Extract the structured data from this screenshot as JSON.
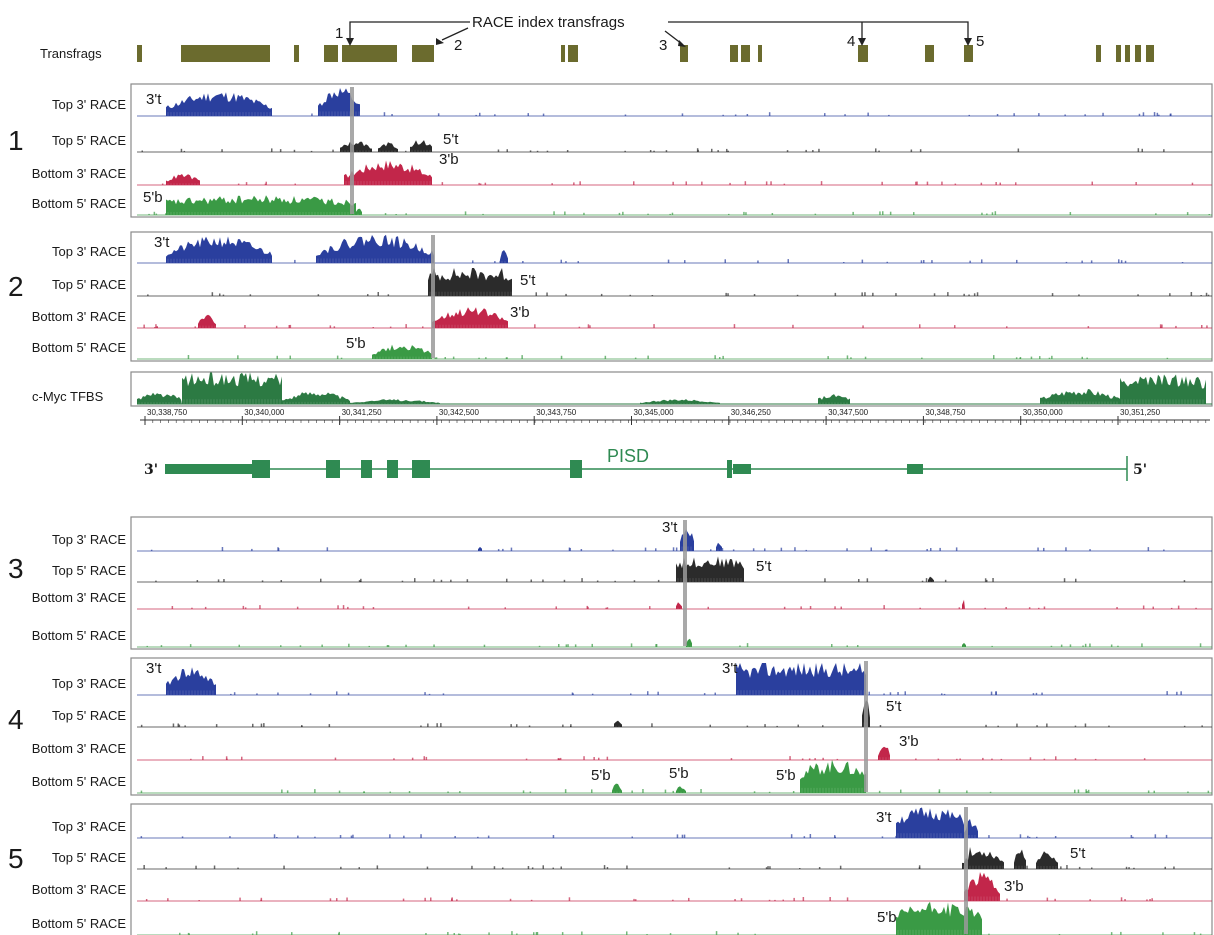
{
  "colors": {
    "transfrag": "#6b6b2e",
    "top3": "#2a3f9e",
    "top5": "#2b2b2b",
    "bottom3": "#c2264a",
    "bottom5": "#3a9a45",
    "tfbs": "#2c7a43",
    "gene": "#2f8a52",
    "marker": "#9a9a9a"
  },
  "header": {
    "title": "RACE index transfrags",
    "transfrags_label": "Transfrags",
    "pointer_labels": [
      "1",
      "2",
      "3",
      "4",
      "5"
    ]
  },
  "track_labels": {
    "top3": "Top 3' RACE",
    "top5": "Top 5' RACE",
    "bottom3": "Bottom 3' RACE",
    "bottom5": "Bottom 5' RACE"
  },
  "panels": [
    {
      "number": "1",
      "annotations": [
        "3't",
        "5't",
        "3'b",
        "5'b"
      ]
    },
    {
      "number": "2",
      "annotations": [
        "3't",
        "5't",
        "3'b",
        "5'b"
      ]
    },
    {
      "number": "3",
      "annotations": [
        "3't",
        "5't"
      ]
    },
    {
      "number": "4",
      "annotations": [
        "3't",
        "3't",
        "5't",
        "3'b",
        "5'b",
        "5'b",
        "5'b"
      ]
    },
    {
      "number": "5",
      "annotations": [
        "3't",
        "5't",
        "3'b",
        "5'b"
      ]
    }
  ],
  "tfbs_label": "c-Myc TFBS",
  "axis": {
    "ticks": [
      "30,338,750",
      "30,340,000",
      "30,341,250",
      "30,342,500",
      "30,343,750",
      "30,345,000",
      "30,346,250",
      "30,347,500",
      "30,348,750",
      "30,350,000",
      "30,351,250"
    ]
  },
  "gene": {
    "name": "PISD",
    "left_end": "3'",
    "right_end": "5'"
  }
}
